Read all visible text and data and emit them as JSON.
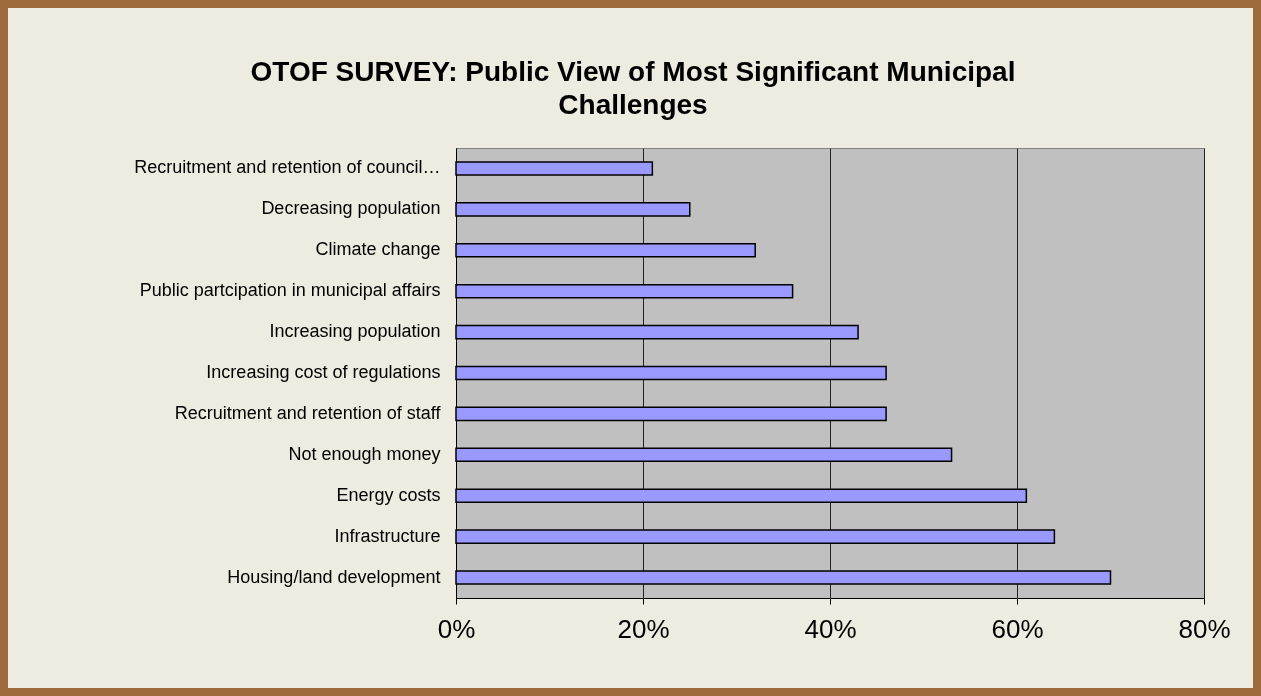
{
  "chart_data": {
    "type": "bar",
    "orientation": "horizontal",
    "title": "OTOF SURVEY: Public View of Most Significant Municipal Challenges",
    "categories": [
      "Recruitment and retention of council…",
      "Decreasing population",
      "Climate change",
      "Public partcipation in municipal affairs",
      "Increasing population",
      "Increasing cost of regulations",
      "Recruitment and retention of staff",
      "Not enough money",
      "Energy costs",
      "Infrastructure",
      "Housing/land development"
    ],
    "values": [
      21,
      25,
      32,
      36,
      43,
      46,
      46,
      53,
      61,
      64,
      70
    ],
    "color": "#9999ff",
    "xlim": [
      0,
      80
    ],
    "xticks": [
      {
        "value": 0,
        "label": "0%"
      },
      {
        "value": 20,
        "label": "20%"
      },
      {
        "value": 40,
        "label": "40%"
      },
      {
        "value": 60,
        "label": "60%"
      },
      {
        "value": 80,
        "label": "80%"
      }
    ],
    "grid": "x"
  }
}
